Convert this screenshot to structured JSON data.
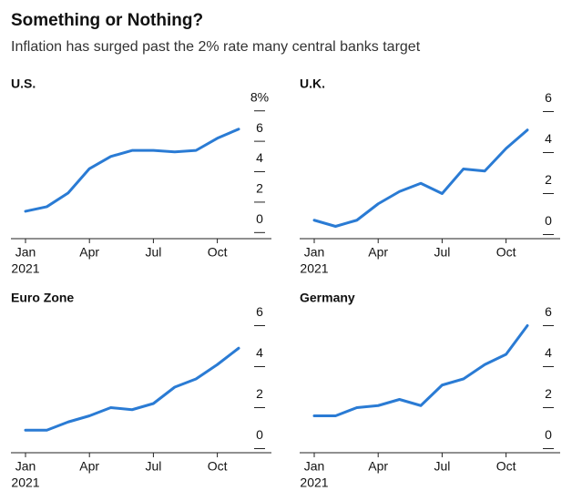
{
  "title": "Something or Nothing?",
  "subtitle": "Inflation has surged past the 2% rate many central banks target",
  "chart_data": [
    {
      "type": "line",
      "title": "U.S.",
      "categories": [
        "Jan",
        null,
        null,
        "Apr",
        null,
        null,
        "Jul",
        null,
        null,
        "Oct",
        null
      ],
      "year_label": "2021",
      "values": [
        1.4,
        1.7,
        2.6,
        4.2,
        5.0,
        5.4,
        5.4,
        5.3,
        5.4,
        6.2,
        6.8
      ],
      "color": "#2a7bd4",
      "ylim": [
        -0.4,
        9.3
      ],
      "yticks": [
        0,
        2,
        4,
        6,
        {
          "value": 8,
          "label": "8%"
        }
      ]
    },
    {
      "type": "line",
      "title": "U.K.",
      "categories": [
        "Jan",
        null,
        null,
        "Apr",
        null,
        null,
        "Jul",
        null,
        null,
        "Oct",
        null
      ],
      "year_label": "2021",
      "values": [
        0.7,
        0.4,
        0.7,
        1.5,
        2.1,
        2.5,
        2.0,
        3.2,
        3.1,
        4.2,
        5.1
      ],
      "color": "#2a7bd4",
      "ylim": [
        -0.2,
        7.0
      ],
      "yticks": [
        0,
        2,
        4,
        6
      ]
    },
    {
      "type": "line",
      "title": "Euro Zone",
      "categories": [
        "Jan",
        null,
        null,
        "Apr",
        null,
        null,
        "Jul",
        null,
        null,
        "Oct",
        null
      ],
      "year_label": "2021",
      "values": [
        0.9,
        0.9,
        1.3,
        1.6,
        2.0,
        1.9,
        2.2,
        3.0,
        3.4,
        4.1,
        4.9
      ],
      "color": "#2a7bd4",
      "ylim": [
        -0.2,
        7.0
      ],
      "yticks": [
        0,
        2,
        4,
        6
      ]
    },
    {
      "type": "line",
      "title": "Germany",
      "categories": [
        "Jan",
        null,
        null,
        "Apr",
        null,
        null,
        "Jul",
        null,
        null,
        "Oct",
        null
      ],
      "year_label": "2021",
      "values": [
        1.6,
        1.6,
        2.0,
        2.1,
        2.4,
        2.1,
        3.1,
        3.4,
        4.1,
        4.6,
        6.0
      ],
      "color": "#2a7bd4",
      "ylim": [
        -0.2,
        7.0
      ],
      "yticks": [
        0,
        2,
        4,
        6
      ]
    }
  ]
}
